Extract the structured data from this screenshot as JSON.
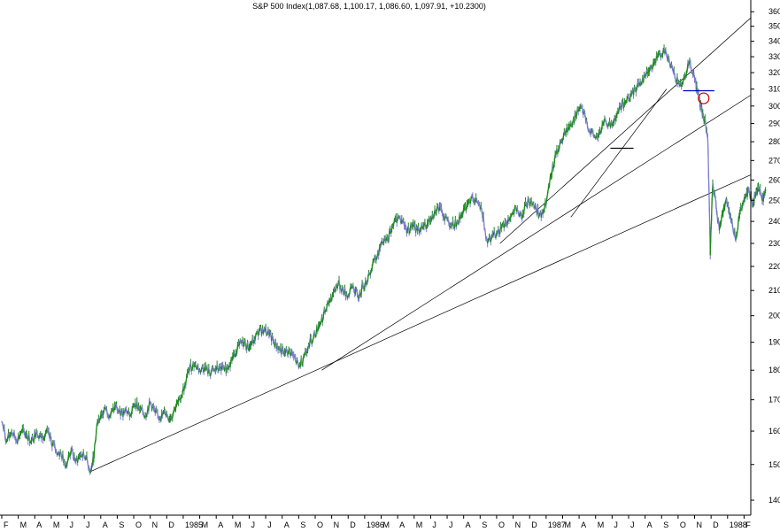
{
  "chart_data": {
    "type": "line",
    "title": "S&P 500 Index(1,087.68, 1,100.17, 1,086.60, 1,097.91, +10.2300)",
    "xlabel": "",
    "ylabel": "",
    "y_scale": "log",
    "ylim": [
      136,
      362
    ],
    "y_ticks": [
      140,
      150,
      160,
      170,
      180,
      190,
      200,
      210,
      220,
      230,
      240,
      250,
      260,
      270,
      280,
      290,
      300,
      310,
      320,
      330,
      340,
      350,
      360
    ],
    "x_axis_labels": [
      {
        "label": "F",
        "time": 0.0
      },
      {
        "label": "M",
        "time": 1.0
      },
      {
        "label": "A",
        "time": 2.0
      },
      {
        "label": "M",
        "time": 3.0
      },
      {
        "label": "J",
        "time": 4.0
      },
      {
        "label": "J",
        "time": 5.0
      },
      {
        "label": "A",
        "time": 6.0
      },
      {
        "label": "S",
        "time": 7.0
      },
      {
        "label": "O",
        "time": 8.0
      },
      {
        "label": "N",
        "time": 9.0
      },
      {
        "label": "D",
        "time": 10.0
      },
      {
        "label": "1985",
        "time": 11.0
      },
      {
        "label": "M",
        "time": 12.0
      },
      {
        "label": "A",
        "time": 13.0
      },
      {
        "label": "M",
        "time": 14.0
      },
      {
        "label": "J",
        "time": 15.0
      },
      {
        "label": "J",
        "time": 16.0
      },
      {
        "label": "A",
        "time": 17.0
      },
      {
        "label": "S",
        "time": 18.0
      },
      {
        "label": "O",
        "time": 19.0
      },
      {
        "label": "N",
        "time": 20.0
      },
      {
        "label": "D",
        "time": 21.0
      },
      {
        "label": "1986",
        "time": 22.0
      },
      {
        "label": "M",
        "time": 23.0
      },
      {
        "label": "A",
        "time": 24.0
      },
      {
        "label": "M",
        "time": 25.0
      },
      {
        "label": "J",
        "time": 26.0
      },
      {
        "label": "J",
        "time": 27.0
      },
      {
        "label": "A",
        "time": 28.0
      },
      {
        "label": "S",
        "time": 29.0
      },
      {
        "label": "O",
        "time": 30.0
      },
      {
        "label": "N",
        "time": 31.0
      },
      {
        "label": "D",
        "time": 32.0
      },
      {
        "label": "1987",
        "time": 33.0
      },
      {
        "label": "M",
        "time": 34.0
      },
      {
        "label": "A",
        "time": 35.0
      },
      {
        "label": "M",
        "time": 36.0
      },
      {
        "label": "J",
        "time": 37.0
      },
      {
        "label": "J",
        "time": 38.0
      },
      {
        "label": "A",
        "time": 39.0
      },
      {
        "label": "S",
        "time": 40.0
      },
      {
        "label": "O",
        "time": 41.0
      },
      {
        "label": "N",
        "time": 42.0
      },
      {
        "label": "D",
        "time": 43.0
      },
      {
        "label": "1988",
        "time": 44.0
      },
      {
        "label": "F",
        "time": 45.0
      }
    ],
    "xlim": [
      0,
      45.3
    ],
    "series": [
      {
        "color": "#1a8a1a",
        "down_color": "#7a7ad0",
        "points": [
          [
            0.0,
            163
          ],
          [
            0.3,
            157
          ],
          [
            0.6,
            160
          ],
          [
            0.9,
            157
          ],
          [
            1.2,
            160
          ],
          [
            1.5,
            159
          ],
          [
            1.8,
            157
          ],
          [
            2.1,
            160
          ],
          [
            2.4,
            158
          ],
          [
            2.7,
            160
          ],
          [
            3.0,
            157
          ],
          [
            3.3,
            154
          ],
          [
            3.6,
            153
          ],
          [
            3.9,
            150
          ],
          [
            4.2,
            154
          ],
          [
            4.5,
            151
          ],
          [
            4.8,
            153
          ],
          [
            5.1,
            152
          ],
          [
            5.4,
            148
          ],
          [
            5.6,
            153
          ],
          [
            5.8,
            163
          ],
          [
            6.0,
            165
          ],
          [
            6.3,
            167
          ],
          [
            6.6,
            165
          ],
          [
            6.9,
            168
          ],
          [
            7.2,
            165
          ],
          [
            7.5,
            167
          ],
          [
            7.8,
            165
          ],
          [
            8.1,
            169
          ],
          [
            8.4,
            167
          ],
          [
            8.7,
            165
          ],
          [
            9.0,
            169
          ],
          [
            9.3,
            166
          ],
          [
            9.6,
            164
          ],
          [
            9.9,
            166
          ],
          [
            10.2,
            164
          ],
          [
            10.5,
            167
          ],
          [
            10.8,
            170
          ],
          [
            11.1,
            175
          ],
          [
            11.4,
            181
          ],
          [
            11.7,
            182
          ],
          [
            12.0,
            180
          ],
          [
            12.3,
            181
          ],
          [
            12.6,
            179
          ],
          [
            12.9,
            180
          ],
          [
            13.2,
            181
          ],
          [
            13.5,
            180
          ],
          [
            13.8,
            182
          ],
          [
            14.1,
            186
          ],
          [
            14.4,
            189
          ],
          [
            14.7,
            190
          ],
          [
            15.0,
            188
          ],
          [
            15.3,
            191
          ],
          [
            15.6,
            194
          ],
          [
            15.9,
            195
          ],
          [
            16.2,
            193
          ],
          [
            16.5,
            190
          ],
          [
            16.8,
            188
          ],
          [
            17.1,
            186
          ],
          [
            17.4,
            187
          ],
          [
            17.7,
            185
          ],
          [
            18.0,
            181
          ],
          [
            18.3,
            185
          ],
          [
            18.6,
            189
          ],
          [
            18.9,
            192
          ],
          [
            19.2,
            196
          ],
          [
            19.5,
            200
          ],
          [
            19.8,
            205
          ],
          [
            20.1,
            209
          ],
          [
            20.4,
            213
          ],
          [
            20.7,
            210
          ],
          [
            21.0,
            208
          ],
          [
            21.3,
            212
          ],
          [
            21.6,
            207
          ],
          [
            21.9,
            212
          ],
          [
            22.2,
            215
          ],
          [
            22.5,
            222
          ],
          [
            22.8,
            226
          ],
          [
            23.1,
            230
          ],
          [
            23.4,
            232
          ],
          [
            23.7,
            238
          ],
          [
            24.0,
            242
          ],
          [
            24.3,
            240
          ],
          [
            24.6,
            236
          ],
          [
            24.9,
            238
          ],
          [
            25.2,
            236
          ],
          [
            25.5,
            237
          ],
          [
            25.8,
            239
          ],
          [
            26.1,
            243
          ],
          [
            26.4,
            247
          ],
          [
            26.7,
            244
          ],
          [
            27.0,
            241
          ],
          [
            27.3,
            238
          ],
          [
            27.6,
            240
          ],
          [
            27.9,
            243
          ],
          [
            28.2,
            248
          ],
          [
            28.5,
            252
          ],
          [
            28.8,
            250
          ],
          [
            29.1,
            245
          ],
          [
            29.4,
            232
          ],
          [
            29.7,
            233
          ],
          [
            30.0,
            235
          ],
          [
            30.3,
            237
          ],
          [
            30.6,
            239
          ],
          [
            30.9,
            243
          ],
          [
            31.2,
            245
          ],
          [
            31.5,
            243
          ],
          [
            31.8,
            248
          ],
          [
            32.1,
            250
          ],
          [
            32.4,
            246
          ],
          [
            32.7,
            242
          ],
          [
            33.0,
            248
          ],
          [
            33.3,
            262
          ],
          [
            33.6,
            273
          ],
          [
            33.9,
            280
          ],
          [
            34.2,
            285
          ],
          [
            34.5,
            290
          ],
          [
            34.8,
            294
          ],
          [
            35.1,
            300
          ],
          [
            35.4,
            292
          ],
          [
            35.7,
            285
          ],
          [
            36.0,
            282
          ],
          [
            36.3,
            285
          ],
          [
            36.6,
            292
          ],
          [
            36.9,
            288
          ],
          [
            37.2,
            292
          ],
          [
            37.5,
            300
          ],
          [
            37.8,
            302
          ],
          [
            38.1,
            305
          ],
          [
            38.4,
            310
          ],
          [
            38.7,
            314
          ],
          [
            39.0,
            318
          ],
          [
            39.3,
            323
          ],
          [
            39.6,
            327
          ],
          [
            39.9,
            332
          ],
          [
            40.2,
            333
          ],
          [
            40.5,
            325
          ],
          [
            40.8,
            318
          ],
          [
            41.1,
            312
          ],
          [
            41.4,
            318
          ],
          [
            41.7,
            328
          ],
          [
            42.0,
            316
          ],
          [
            42.2,
            308
          ],
          [
            42.4,
            298
          ],
          [
            42.6,
            292
          ],
          [
            42.8,
            282
          ],
          [
            42.95,
            225
          ],
          [
            43.1,
            258
          ],
          [
            43.3,
            248
          ],
          [
            43.5,
            236
          ],
          [
            43.7,
            244
          ],
          [
            43.9,
            250
          ],
          [
            44.1,
            245
          ],
          [
            44.3,
            238
          ],
          [
            44.5,
            232
          ],
          [
            44.7,
            242
          ],
          [
            44.9,
            248
          ],
          [
            45.1,
            252
          ],
          [
            45.3,
            255
          ],
          [
            45.5,
            248
          ],
          [
            45.7,
            252
          ],
          [
            45.9,
            256
          ],
          [
            46.1,
            250
          ],
          [
            46.3,
            255
          ]
        ]
      }
    ],
    "trendlines": [
      {
        "from": [
          5.4,
          148
        ],
        "to": [
          46.3,
          266
        ]
      },
      {
        "from": [
          19.4,
          180
        ],
        "to": [
          46.3,
          312
        ]
      },
      {
        "from": [
          30.2,
          230
        ],
        "to": [
          46.3,
          365
        ]
      },
      {
        "from": [
          34.5,
          242
        ],
        "to": [
          40.3,
          310
        ]
      }
    ],
    "horizontal_marks": [
      {
        "y": 276.5,
        "x_from": 36.9,
        "x_to": 38.3,
        "color": "#000"
      },
      {
        "y": 309,
        "x_from": 41.3,
        "x_to": 43.2,
        "color": "#0000cc"
      }
    ],
    "circle_marker": {
      "time": 42.55,
      "value": 304.5,
      "color": "#cc0000"
    },
    "colors": {
      "up": "#1a8a1a",
      "down": "#7a7ad0",
      "line": "#000000",
      "accent": "#0000cc",
      "marker": "#cc0000"
    }
  }
}
